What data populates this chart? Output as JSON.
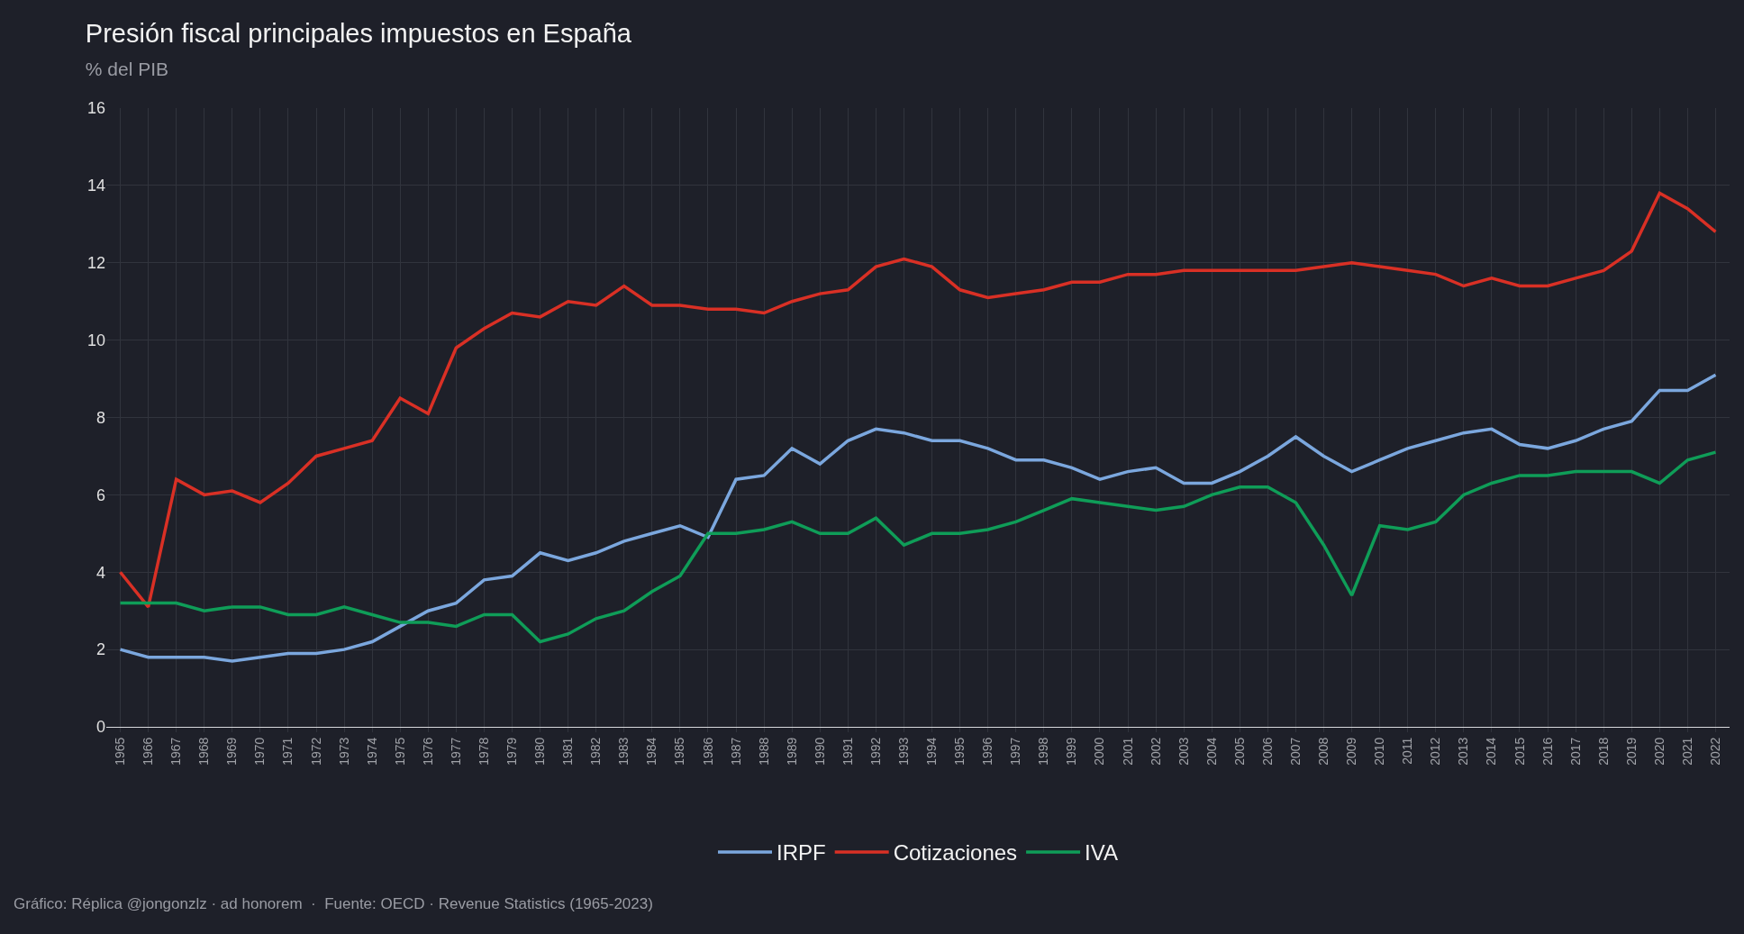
{
  "chart_data": {
    "type": "line",
    "title": "Presión fiscal principales impuestos en España",
    "subtitle": "% del PIB",
    "categories": [
      "1965",
      "1966",
      "1967",
      "1968",
      "1969",
      "1970",
      "1971",
      "1972",
      "1973",
      "1974",
      "1975",
      "1976",
      "1977",
      "1978",
      "1979",
      "1980",
      "1981",
      "1982",
      "1983",
      "1984",
      "1985",
      "1986",
      "1987",
      "1988",
      "1989",
      "1990",
      "1991",
      "1992",
      "1993",
      "1994",
      "1995",
      "1996",
      "1997",
      "1998",
      "1999",
      "2000",
      "2001",
      "2002",
      "2003",
      "2004",
      "2005",
      "2006",
      "2007",
      "2008",
      "2009",
      "2010",
      "2011",
      "2012",
      "2013",
      "2014",
      "2015",
      "2016",
      "2017",
      "2018",
      "2019",
      "2020",
      "2021",
      "2022"
    ],
    "series": [
      {
        "name": "IRPF",
        "color": "#7ba7de",
        "values": [
          2.0,
          1.8,
          1.8,
          1.8,
          1.7,
          1.8,
          1.9,
          1.9,
          2.0,
          2.2,
          2.6,
          3.0,
          3.2,
          3.8,
          3.9,
          4.5,
          4.3,
          4.5,
          4.8,
          5.0,
          5.2,
          4.9,
          6.4,
          6.5,
          7.2,
          6.8,
          7.4,
          7.7,
          7.6,
          7.4,
          7.4,
          7.2,
          6.9,
          6.9,
          6.7,
          6.4,
          6.6,
          6.7,
          6.3,
          6.3,
          6.6,
          7.0,
          7.5,
          7.0,
          6.6,
          6.9,
          7.2,
          7.4,
          7.6,
          7.7,
          7.3,
          7.2,
          7.4,
          7.7,
          7.9,
          8.7,
          8.7,
          9.1
        ]
      },
      {
        "name": "Cotizaciones",
        "color": "#d93025",
        "values": [
          4.0,
          3.1,
          6.4,
          6.0,
          6.1,
          5.8,
          6.3,
          7.0,
          7.2,
          7.4,
          8.5,
          8.1,
          9.8,
          10.3,
          10.7,
          10.6,
          11.0,
          10.9,
          11.4,
          10.9,
          10.9,
          10.8,
          10.8,
          10.7,
          11.0,
          11.2,
          11.3,
          11.9,
          12.1,
          11.9,
          11.3,
          11.1,
          11.2,
          11.3,
          11.5,
          11.5,
          11.7,
          11.7,
          11.8,
          11.8,
          11.8,
          11.8,
          11.8,
          11.9,
          12.0,
          11.9,
          11.8,
          11.7,
          11.4,
          11.6,
          11.4,
          11.4,
          11.6,
          11.8,
          12.3,
          13.8,
          13.4,
          12.8
        ]
      },
      {
        "name": "IVA",
        "color": "#0f9d58",
        "values": [
          3.2,
          3.2,
          3.2,
          3.0,
          3.1,
          3.1,
          2.9,
          2.9,
          3.1,
          2.9,
          2.7,
          2.7,
          2.6,
          2.9,
          2.9,
          2.2,
          2.4,
          2.8,
          3.0,
          3.5,
          3.9,
          5.0,
          5.0,
          5.1,
          5.3,
          5.0,
          5.0,
          5.4,
          4.7,
          5.0,
          5.0,
          5.1,
          5.3,
          5.6,
          5.9,
          5.8,
          5.7,
          5.6,
          5.7,
          6.0,
          6.2,
          6.2,
          5.8,
          4.7,
          3.4,
          5.2,
          5.1,
          5.3,
          6.0,
          6.3,
          6.5,
          6.5,
          6.6,
          6.6,
          6.6,
          6.3,
          6.9,
          7.1
        ]
      }
    ],
    "ylim": [
      0,
      16
    ],
    "yticks": [
      0,
      2,
      4,
      6,
      8,
      10,
      12,
      14,
      16
    ],
    "grid": true,
    "legend": "bottom",
    "marker": "none",
    "line_style": "solid",
    "annotations": [
      "Gráfico: Réplica @jongonzlz · ad honorem  ·  Fuente: OECD · Revenue Statistics (1965-2023)"
    ]
  }
}
